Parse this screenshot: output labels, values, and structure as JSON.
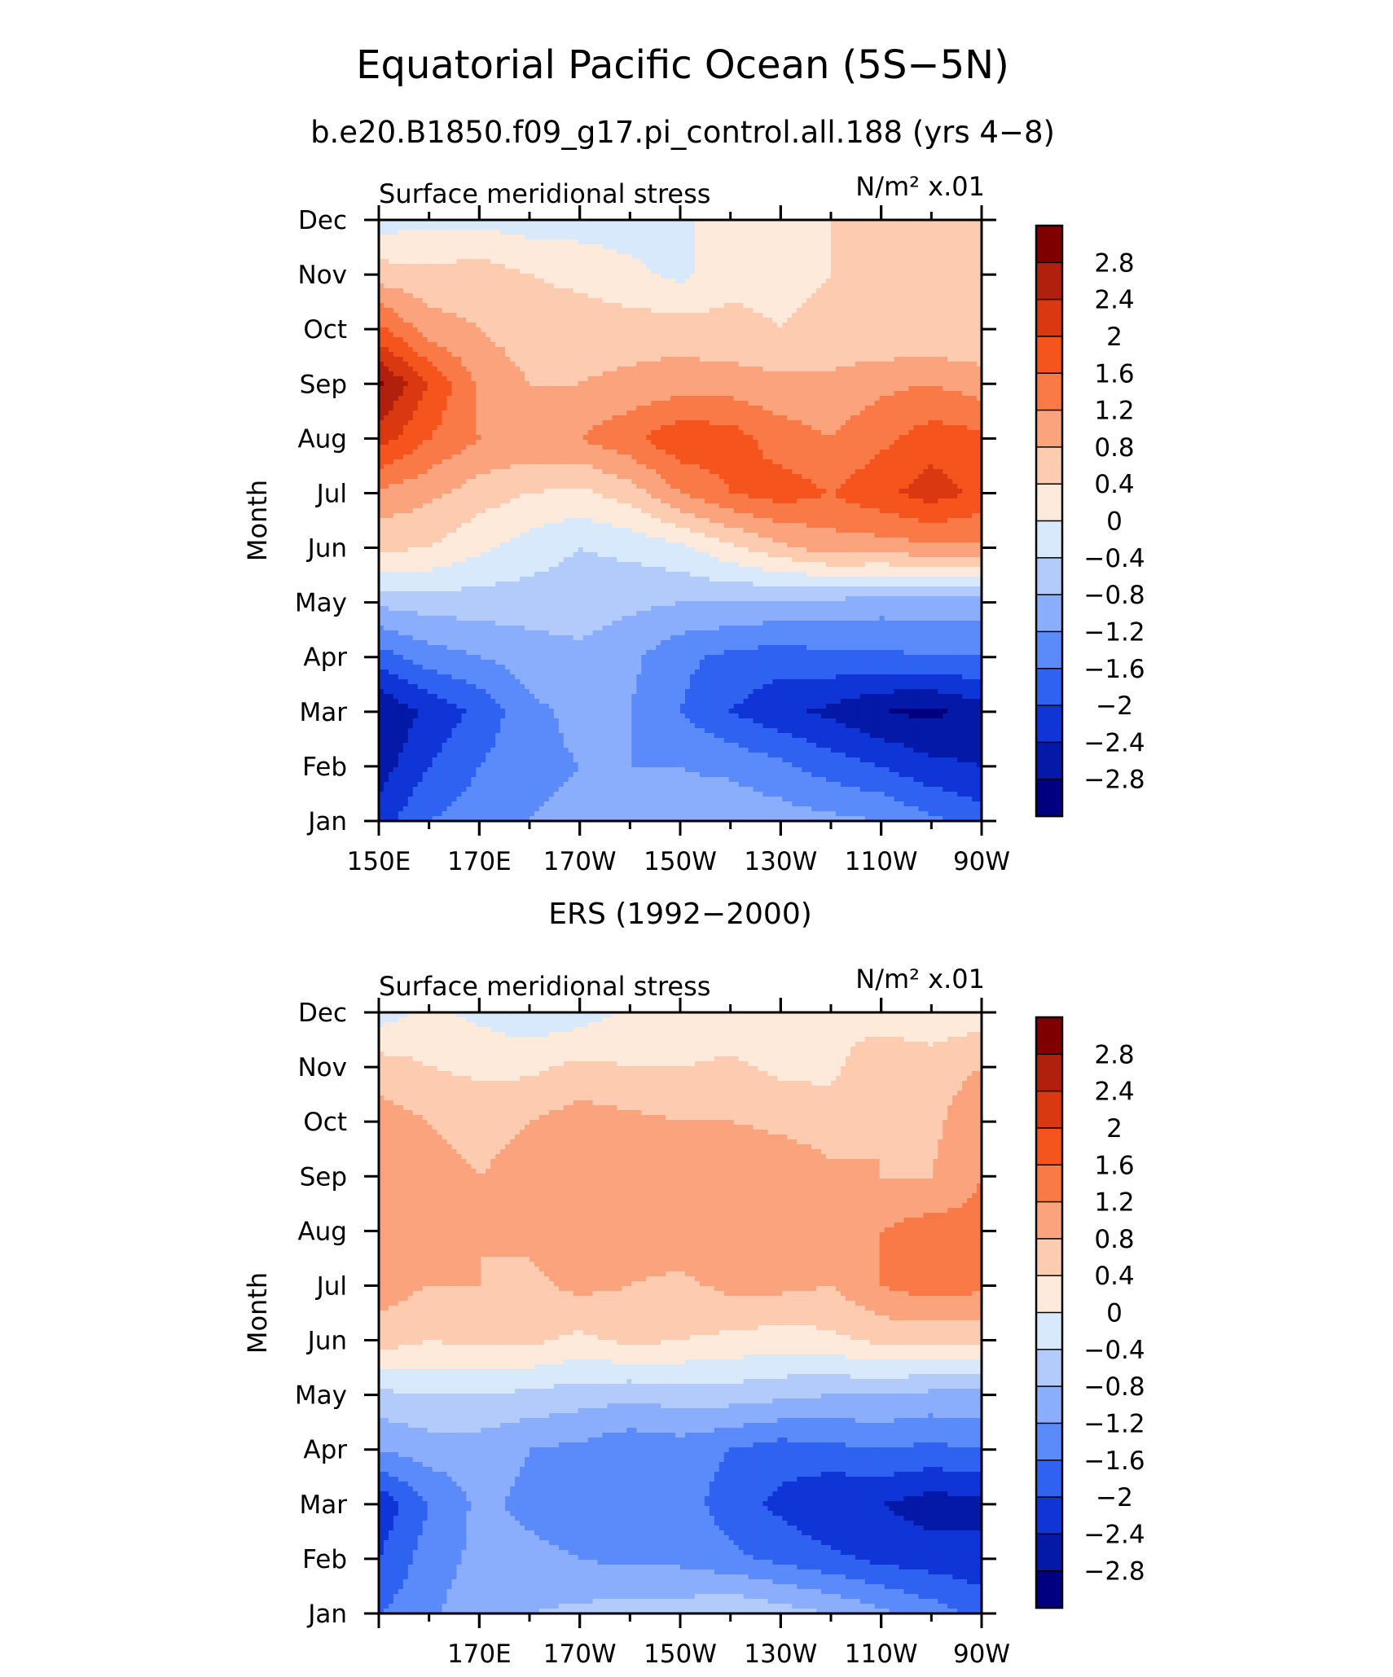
{
  "figure": {
    "title": "Equatorial Pacific Ocean (5S−5N)",
    "subtitle": "b.e20.B1850.f09_g17.pi_control.all.188 (yrs 4−8)"
  },
  "colorbar": {
    "labels": [
      "2.8",
      "2.4",
      "2",
      "1.6",
      "1.2",
      "0.8",
      "0.4",
      "0",
      "−0.4",
      "−0.8",
      "−1.2",
      "−1.6",
      "−2",
      "−2.4",
      "−2.8"
    ],
    "colors": [
      "#800000",
      "#b0200c",
      "#d93810",
      "#f5541c",
      "#f97a47",
      "#fba37c",
      "#fdcbb0",
      "#feeadb",
      "#d8e9fb",
      "#b3cbfb",
      "#8aaefc",
      "#5b8bfa",
      "#2f62f0",
      "#0f35d6",
      "#0519a8",
      "#000080"
    ]
  },
  "chart_data": [
    {
      "type": "heatmap",
      "title": "",
      "left_label": "Surface meridional stress",
      "right_label": "N/m² x.01",
      "ylabel": "Month",
      "xlabel": "",
      "x_tick_labels": [
        "150E",
        "170E",
        "170W",
        "150W",
        "130W",
        "110W",
        "90W"
      ],
      "x": [
        150,
        160,
        170,
        180,
        190,
        200,
        210,
        220,
        230,
        240,
        250,
        260,
        270
      ],
      "y": [
        "Jan",
        "Feb",
        "Mar",
        "Apr",
        "May",
        "Jun",
        "Jul",
        "Aug",
        "Sep",
        "Oct",
        "Nov",
        "Dec"
      ],
      "levels": [
        -2.8,
        -2.4,
        -2.0,
        -1.6,
        -1.2,
        -0.8,
        -0.4,
        0,
        0.4,
        0.8,
        1.2,
        1.6,
        2.0,
        2.4,
        2.8
      ],
      "z": [
        [
          -2.2,
          -1.6,
          -1.4,
          -1.2,
          -1.1,
          -1.0,
          -1.0,
          -0.9,
          -1.0,
          -1.1,
          -1.2,
          -1.5,
          -1.8
        ],
        [
          -2.6,
          -2.0,
          -1.6,
          -1.3,
          -1.2,
          -1.2,
          -1.2,
          -1.3,
          -1.5,
          -1.8,
          -2.0,
          -2.3,
          -2.4
        ],
        [
          -2.8,
          -2.3,
          -1.9,
          -1.3,
          -1.1,
          -1.2,
          -1.6,
          -2.0,
          -2.3,
          -2.5,
          -2.8,
          -2.9,
          -2.6
        ],
        [
          -1.8,
          -1.4,
          -1.2,
          -1.0,
          -0.9,
          -1.1,
          -1.5,
          -1.7,
          -1.8,
          -1.7,
          -1.7,
          -1.6,
          -1.6
        ],
        [
          -0.7,
          -0.6,
          -0.6,
          -0.6,
          -0.6,
          -0.7,
          -0.8,
          -0.8,
          -0.9,
          -0.9,
          -1.0,
          -1.0,
          -1.0
        ],
        [
          0.5,
          0.4,
          0.1,
          -0.2,
          -0.4,
          -0.3,
          -0.1,
          0.3,
          0.7,
          1.0,
          1.0,
          1.1,
          1.1
        ],
        [
          1.1,
          0.9,
          0.6,
          0.4,
          0.3,
          0.6,
          1.2,
          1.6,
          1.8,
          1.6,
          1.9,
          2.2,
          1.9
        ],
        [
          2.2,
          1.6,
          1.2,
          1.1,
          1.2,
          1.5,
          1.9,
          1.8,
          1.4,
          1.2,
          1.5,
          1.8,
          1.7
        ],
        [
          2.9,
          2.0,
          1.1,
          0.8,
          0.8,
          0.9,
          1.0,
          1.0,
          0.9,
          0.9,
          1.1,
          1.2,
          1.0
        ],
        [
          1.7,
          1.0,
          0.8,
          0.6,
          0.6,
          0.6,
          0.6,
          0.5,
          0.4,
          0.5,
          0.4,
          0.4,
          0.4
        ],
        [
          0.6,
          0.5,
          0.6,
          0.4,
          0.3,
          0.1,
          -0.1,
          0.3,
          0.3,
          0.4,
          0.5,
          0.5,
          0.4
        ],
        [
          -0.2,
          -0.1,
          -0.1,
          -0.2,
          -0.2,
          -0.2,
          -0.1,
          0.3,
          0.4,
          0.4,
          0.5,
          0.5,
          0.4
        ]
      ]
    },
    {
      "type": "heatmap",
      "title": "ERS (1992−2000)",
      "left_label": "Surface meridional stress",
      "right_label": "N/m² x.01",
      "ylabel": "Month",
      "xlabel": "",
      "x_tick_labels": [
        "170E",
        "170W",
        "150W",
        "130W",
        "110W",
        "90W"
      ],
      "x": [
        150,
        160,
        170,
        180,
        190,
        200,
        210,
        220,
        230,
        240,
        250,
        260,
        270
      ],
      "y": [
        "Jan",
        "Feb",
        "Mar",
        "Apr",
        "May",
        "Jun",
        "Jul",
        "Aug",
        "Sep",
        "Oct",
        "Nov",
        "Dec"
      ],
      "levels": [
        -2.8,
        -2.4,
        -2.0,
        -1.6,
        -1.2,
        -0.8,
        -0.4,
        0,
        0.4,
        0.8,
        1.2,
        1.6,
        2.0,
        2.4,
        2.8
      ],
      "z": [
        [
          -1.6,
          -1.3,
          -0.9,
          -0.8,
          -0.7,
          -0.6,
          -0.6,
          -0.4,
          -0.6,
          -0.8,
          -1.1,
          -1.4,
          -1.7
        ],
        [
          -2.0,
          -1.4,
          -1.1,
          -1.1,
          -1.2,
          -1.3,
          -1.3,
          -1.5,
          -1.7,
          -1.9,
          -2.1,
          -2.2,
          -2.3
        ],
        [
          -2.3,
          -1.6,
          -1.1,
          -1.3,
          -1.4,
          -1.3,
          -1.4,
          -1.8,
          -2.1,
          -2.4,
          -2.4,
          -2.6,
          -2.5
        ],
        [
          -1.2,
          -1.0,
          -1.0,
          -1.2,
          -1.3,
          -1.5,
          -1.4,
          -1.6,
          -1.8,
          -1.7,
          -1.6,
          -1.7,
          -1.6
        ],
        [
          -0.5,
          -0.4,
          -0.4,
          -0.5,
          -0.6,
          -0.7,
          -0.6,
          -0.6,
          -0.7,
          -0.8,
          -0.8,
          -0.9,
          -0.9
        ],
        [
          0.6,
          0.4,
          0.5,
          0.5,
          0.3,
          0.5,
          0.4,
          0.3,
          0.2,
          0.3,
          0.5,
          0.5,
          0.5
        ],
        [
          1.0,
          0.8,
          0.8,
          0.7,
          0.9,
          0.8,
          0.7,
          0.9,
          0.9,
          0.8,
          1.2,
          1.4,
          1.3
        ],
        [
          1.1,
          0.9,
          0.8,
          0.9,
          1.0,
          1.0,
          1.1,
          1.2,
          1.0,
          0.9,
          1.2,
          1.4,
          1.3
        ],
        [
          1.2,
          0.9,
          0.8,
          0.9,
          1.0,
          1.1,
          1.1,
          1.2,
          1.1,
          0.9,
          0.8,
          0.8,
          1.2
        ],
        [
          1.0,
          0.8,
          0.7,
          0.8,
          1.0,
          0.9,
          0.8,
          0.8,
          0.7,
          0.6,
          0.8,
          0.7,
          1.1
        ],
        [
          0.6,
          0.4,
          0.3,
          0.3,
          0.5,
          0.4,
          0.4,
          0.5,
          0.3,
          0.3,
          0.7,
          0.6,
          0.8
        ],
        [
          -0.2,
          0.1,
          -0.1,
          -0.3,
          -0.2,
          0.1,
          0.0,
          0.0,
          0.1,
          0.3,
          0.2,
          0.1,
          0.2
        ]
      ]
    }
  ]
}
